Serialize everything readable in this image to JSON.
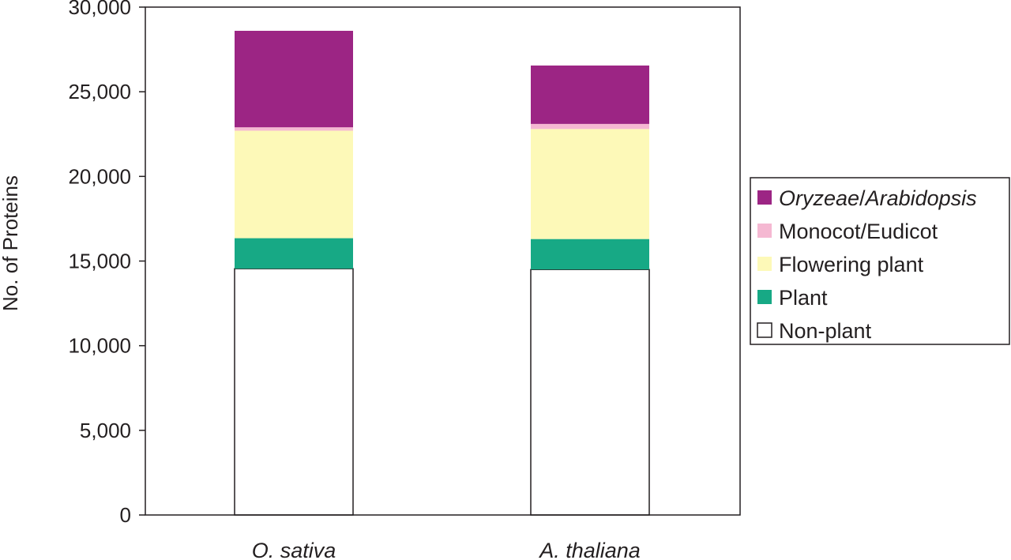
{
  "chart_data": {
    "type": "bar",
    "stacked": true,
    "categories": [
      "O. sativa",
      "A. thaliana"
    ],
    "series": [
      {
        "name": "Non-plant",
        "values": [
          14550,
          14500
        ],
        "color": "#ffffff"
      },
      {
        "name": "Plant",
        "values": [
          1800,
          1800
        ],
        "color": "#17a985"
      },
      {
        "name": "Flowering plant",
        "values": [
          6350,
          6500
        ],
        "color": "#fdf9b8"
      },
      {
        "name": "Monocot/Eudicot",
        "values": [
          200,
          300
        ],
        "color": "#f5b8d2"
      },
      {
        "name": "Oryzeae/Arabidopsis",
        "values": [
          5700,
          3450
        ],
        "color": "#9c2584"
      }
    ],
    "legend": {
      "placement": "right",
      "entries": [
        {
          "parts": [
            {
              "text": "Oryzeae",
              "italic": true
            },
            {
              "text": "/",
              "italic": false
            },
            {
              "text": "Arabidopsis",
              "italic": true
            }
          ],
          "color": "#9c2584"
        },
        {
          "parts": [
            {
              "text": "Monocot/Eudicot",
              "italic": false
            }
          ],
          "color": "#f5b8d2"
        },
        {
          "parts": [
            {
              "text": "Flowering plant",
              "italic": false
            }
          ],
          "color": "#fdf9b8"
        },
        {
          "parts": [
            {
              "text": "Plant",
              "italic": false
            }
          ],
          "color": "#17a985"
        },
        {
          "parts": [
            {
              "text": "Non-plant",
              "italic": false
            }
          ],
          "color": "#ffffff"
        }
      ]
    },
    "ylabel": "No. of Proteins",
    "xlabel": "",
    "ylim": [
      0,
      30000
    ],
    "yticks": [
      0,
      5000,
      10000,
      15000,
      20000,
      25000,
      30000
    ],
    "ytick_labels": [
      "0",
      "5,000",
      "10,000",
      "15,000",
      "20,000",
      "25,000",
      "30,000"
    ],
    "grid": false
  }
}
